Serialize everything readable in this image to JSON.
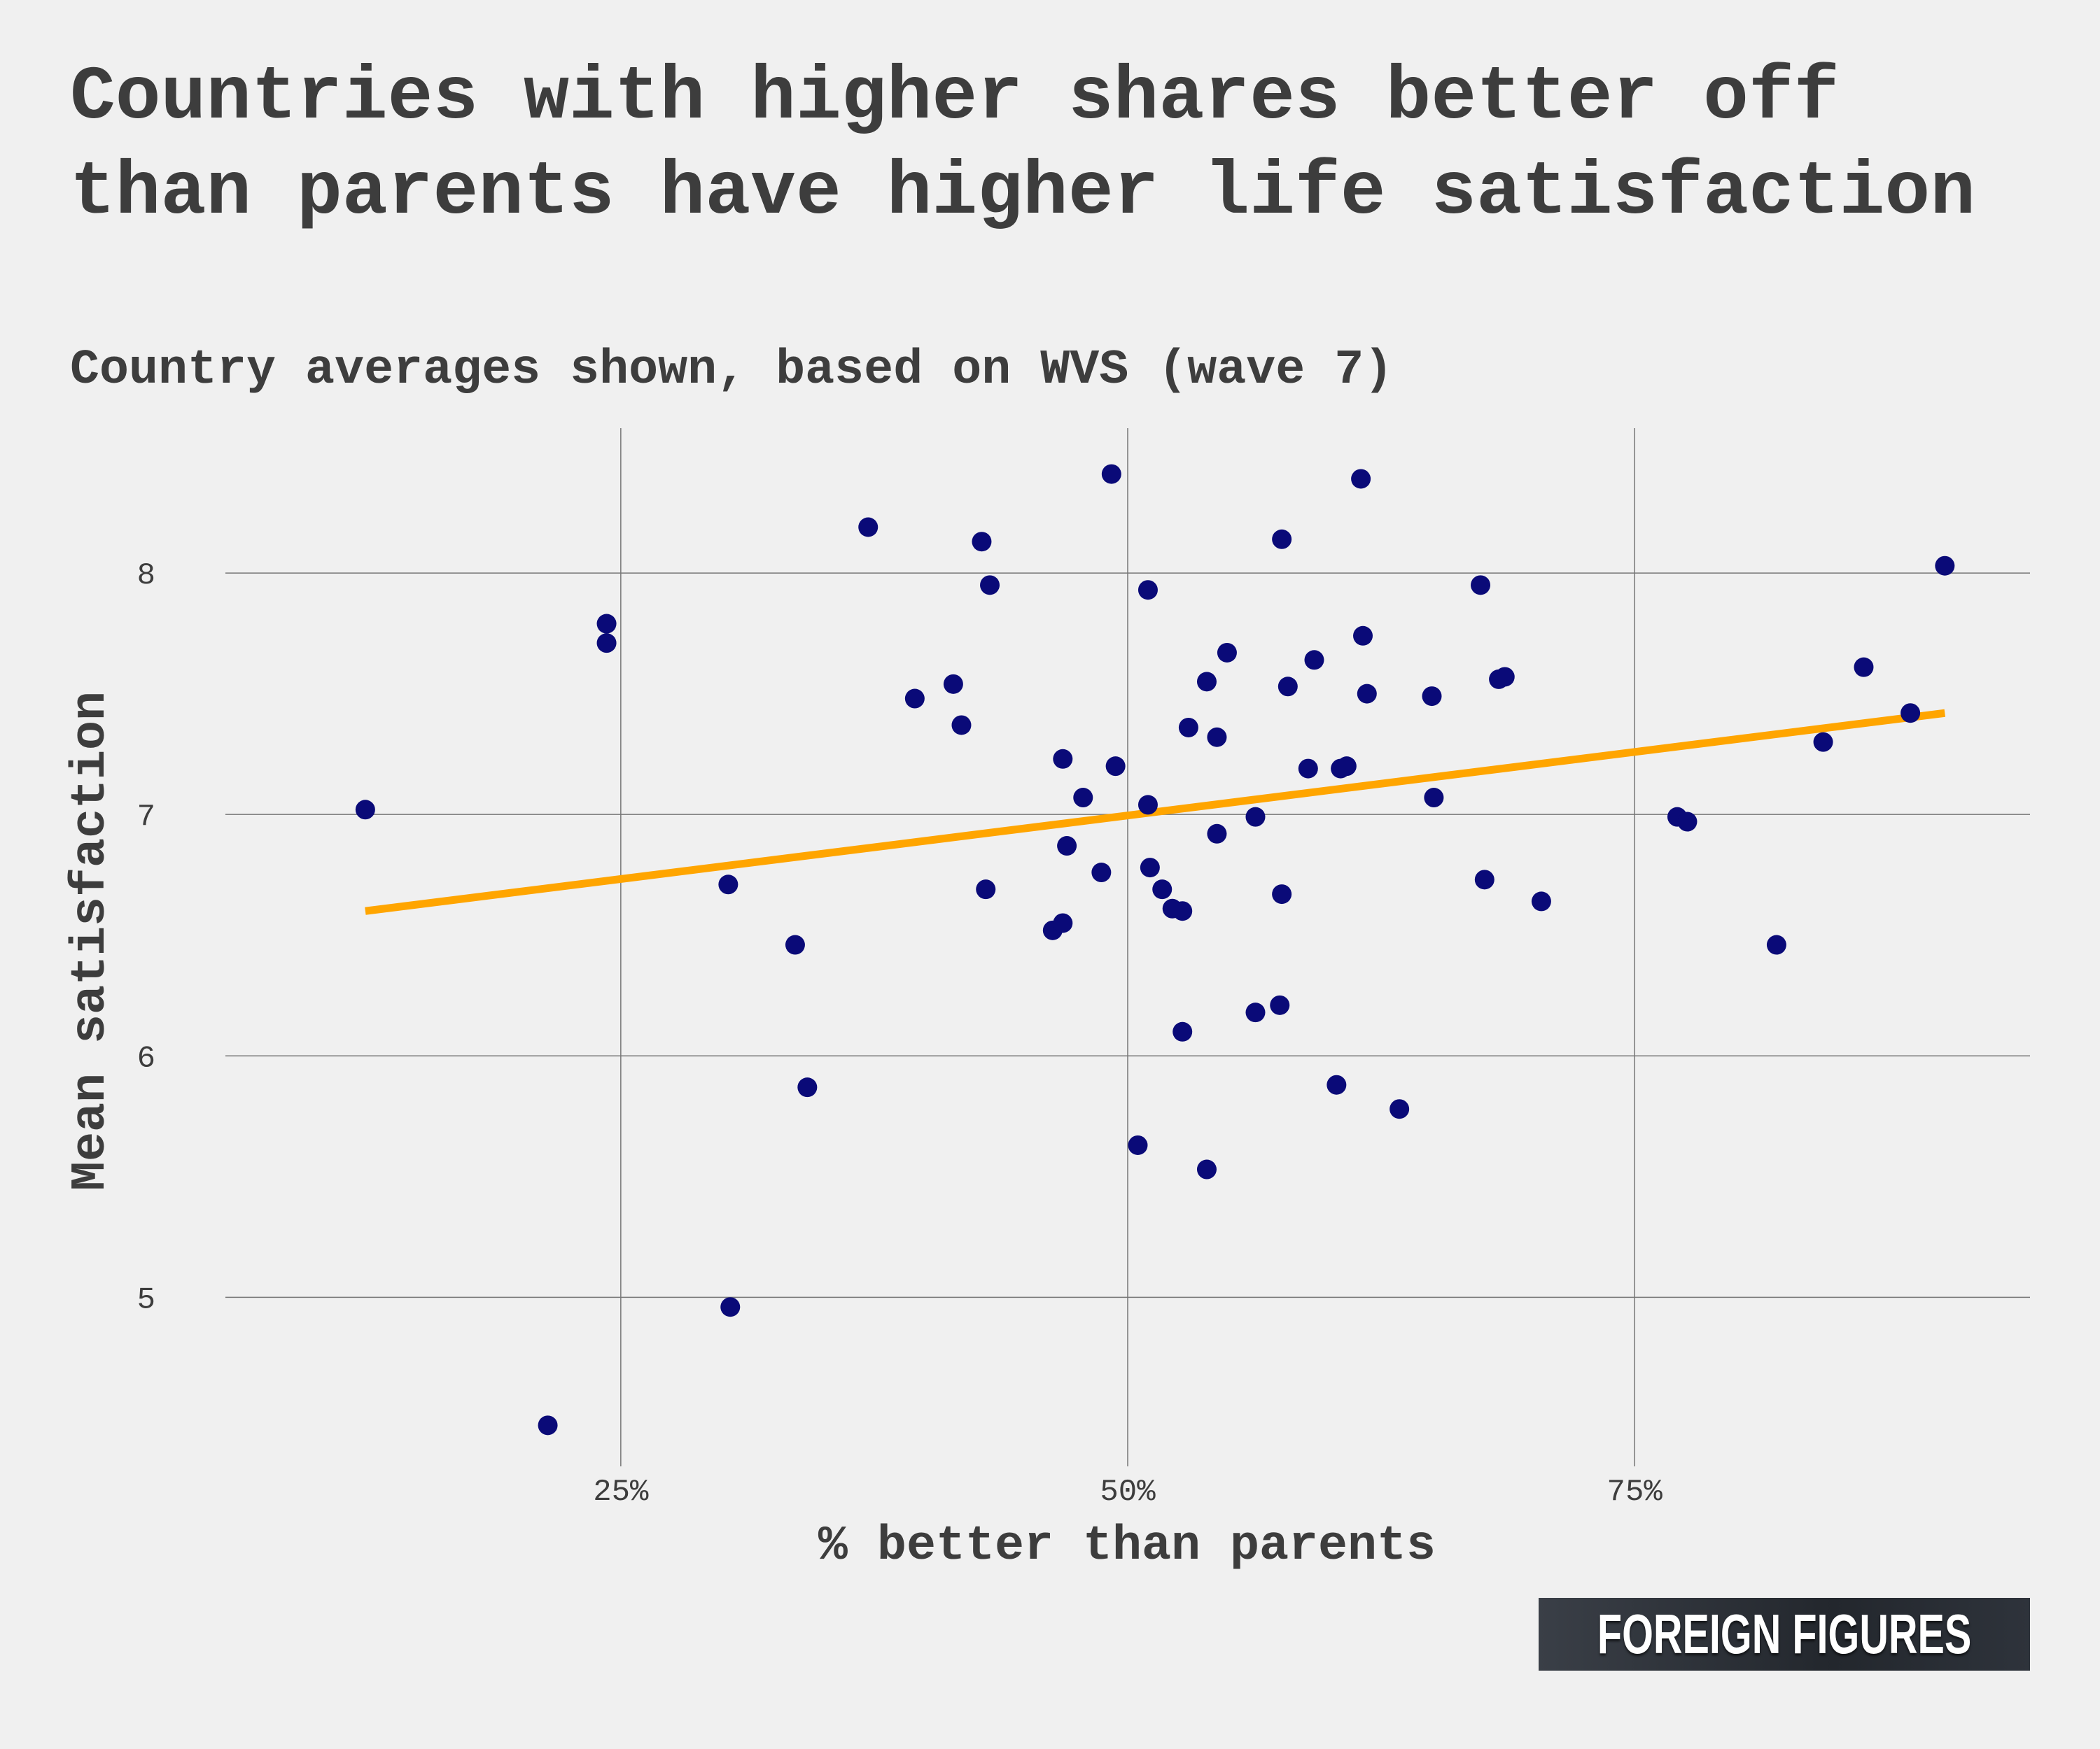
{
  "title": "Countries with higher shares better off than parents have higher life satisfaction",
  "subtitle": "Country averages shown, based on WVS (wave 7)",
  "logo": "FOREIGN FIGURES",
  "colors": {
    "points": "#0a0a78",
    "trend": "#ffa500",
    "grid": "#777777",
    "background": "#f0f0f0"
  },
  "chart_data": {
    "type": "scatter",
    "title": "Countries with higher shares better off than parents have higher life satisfaction",
    "subtitle": "Country averages shown, based on WVS (wave 7)",
    "xlabel": "% better than parents",
    "ylabel": "Mean satisfaction",
    "xlim": [
      5.5,
      94.5
    ],
    "ylim": [
      4.3,
      8.6
    ],
    "x_ticks": [
      25,
      50,
      75
    ],
    "x_tick_labels": [
      "25%",
      "50%",
      "75%"
    ],
    "y_ticks": [
      5,
      6,
      7,
      8
    ],
    "y_tick_labels": [
      "5",
      "6",
      "7",
      "8"
    ],
    "grid": true,
    "trend_line": {
      "x": [
        12.4,
        90.3
      ],
      "y": [
        6.6,
        7.42
      ]
    },
    "points": [
      {
        "x": 12.4,
        "y": 7.02
      },
      {
        "x": 21.4,
        "y": 4.47
      },
      {
        "x": 24.3,
        "y": 7.79
      },
      {
        "x": 24.3,
        "y": 7.71
      },
      {
        "x": 30.3,
        "y": 6.71
      },
      {
        "x": 30.4,
        "y": 4.96
      },
      {
        "x": 33.6,
        "y": 6.46
      },
      {
        "x": 34.2,
        "y": 5.87
      },
      {
        "x": 37.2,
        "y": 8.19
      },
      {
        "x": 39.5,
        "y": 7.48
      },
      {
        "x": 41.4,
        "y": 7.54
      },
      {
        "x": 41.8,
        "y": 7.37
      },
      {
        "x": 42.8,
        "y": 8.13
      },
      {
        "x": 43.0,
        "y": 6.69
      },
      {
        "x": 43.2,
        "y": 7.95
      },
      {
        "x": 46.3,
        "y": 6.52
      },
      {
        "x": 46.8,
        "y": 6.55
      },
      {
        "x": 46.8,
        "y": 7.23
      },
      {
        "x": 47.0,
        "y": 6.87
      },
      {
        "x": 47.8,
        "y": 7.07
      },
      {
        "x": 48.7,
        "y": 6.76
      },
      {
        "x": 49.2,
        "y": 8.41
      },
      {
        "x": 49.4,
        "y": 7.2
      },
      {
        "x": 50.5,
        "y": 5.63
      },
      {
        "x": 51.0,
        "y": 7.04
      },
      {
        "x": 51.0,
        "y": 7.93
      },
      {
        "x": 51.1,
        "y": 6.78
      },
      {
        "x": 51.7,
        "y": 6.69
      },
      {
        "x": 52.2,
        "y": 6.61
      },
      {
        "x": 52.7,
        "y": 6.1
      },
      {
        "x": 52.7,
        "y": 6.6
      },
      {
        "x": 53.0,
        "y": 7.36
      },
      {
        "x": 53.9,
        "y": 7.55
      },
      {
        "x": 53.9,
        "y": 5.53
      },
      {
        "x": 54.4,
        "y": 6.92
      },
      {
        "x": 54.4,
        "y": 7.32
      },
      {
        "x": 54.9,
        "y": 7.67
      },
      {
        "x": 56.3,
        "y": 6.18
      },
      {
        "x": 56.3,
        "y": 6.99
      },
      {
        "x": 57.5,
        "y": 6.21
      },
      {
        "x": 57.6,
        "y": 6.67
      },
      {
        "x": 57.6,
        "y": 8.14
      },
      {
        "x": 57.9,
        "y": 7.53
      },
      {
        "x": 58.9,
        "y": 7.19
      },
      {
        "x": 59.2,
        "y": 7.64
      },
      {
        "x": 60.3,
        "y": 5.88
      },
      {
        "x": 60.5,
        "y": 7.19
      },
      {
        "x": 60.8,
        "y": 7.2
      },
      {
        "x": 61.5,
        "y": 8.39
      },
      {
        "x": 61.6,
        "y": 7.74
      },
      {
        "x": 61.8,
        "y": 7.5
      },
      {
        "x": 63.4,
        "y": 5.78
      },
      {
        "x": 65.0,
        "y": 7.49
      },
      {
        "x": 65.1,
        "y": 7.07
      },
      {
        "x": 67.4,
        "y": 7.95
      },
      {
        "x": 67.6,
        "y": 6.73
      },
      {
        "x": 68.3,
        "y": 7.56
      },
      {
        "x": 68.6,
        "y": 7.57
      },
      {
        "x": 70.4,
        "y": 6.64
      },
      {
        "x": 77.1,
        "y": 6.99
      },
      {
        "x": 77.6,
        "y": 6.97
      },
      {
        "x": 82.0,
        "y": 6.46
      },
      {
        "x": 84.3,
        "y": 7.3
      },
      {
        "x": 86.3,
        "y": 7.61
      },
      {
        "x": 88.6,
        "y": 7.42
      },
      {
        "x": 90.3,
        "y": 8.03
      }
    ]
  }
}
